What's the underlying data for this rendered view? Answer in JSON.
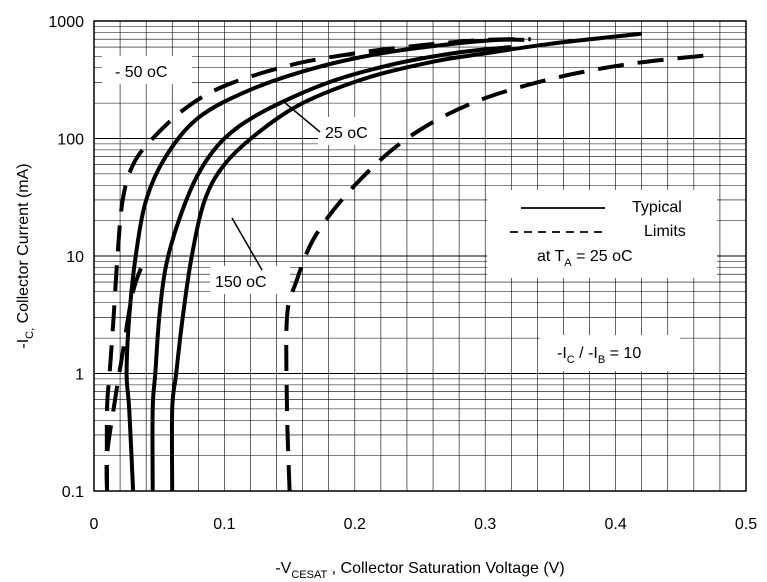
{
  "chart_data": {
    "type": "line",
    "xlabel": {
      "prefix": "-V",
      "sub": "CESAT",
      "suffix": " , Collector Saturation Voltage (V)"
    },
    "ylabel": {
      "prefix": "-I",
      "sub": "C,",
      "suffix": "  Collector Current (mA)"
    },
    "xlim": [
      0,
      0.5
    ],
    "ylim": [
      0.1,
      1000
    ],
    "yscale": "log",
    "grid": true,
    "x_ticks": [
      "0",
      "0.1",
      "0.2",
      "0.3",
      "0.4",
      "0.5"
    ],
    "y_ticks": [
      "0.1",
      "1",
      "10",
      "100",
      "1000"
    ],
    "series": [
      {
        "name": "- 50 oC",
        "style": "dashed",
        "x": [
          0.01,
          0.01,
          0.012,
          0.015,
          0.018,
          0.022,
          0.03,
          0.045,
          0.07,
          0.1,
          0.15,
          0.2,
          0.25,
          0.29,
          0.32,
          0.335
        ],
        "y": [
          0.1,
          0.5,
          1,
          3,
          10,
          30,
          60,
          100,
          180,
          280,
          420,
          530,
          620,
          680,
          700,
          700
        ]
      },
      {
        "name": "-50 oC limit",
        "style": "dashed",
        "x": [
          0.01,
          0.01,
          0.015,
          0.022,
          0.03,
          0.04
        ],
        "y": [
          0.1,
          0.2,
          0.5,
          1.5,
          5,
          10
        ]
      },
      {
        "name": "- 50 oC",
        "style": "solid",
        "x": [
          0.03,
          0.027,
          0.025,
          0.027,
          0.032,
          0.04,
          0.055,
          0.08,
          0.12,
          0.17,
          0.22,
          0.27,
          0.31,
          0.33
        ],
        "y": [
          0.1,
          0.5,
          1,
          3,
          10,
          30,
          70,
          150,
          260,
          400,
          530,
          630,
          690,
          690
        ]
      },
      {
        "name": "25 oC",
        "style": "solid",
        "x": [
          0.045,
          0.045,
          0.047,
          0.05,
          0.055,
          0.065,
          0.08,
          0.1,
          0.13,
          0.18,
          0.23,
          0.28,
          0.32
        ],
        "y": [
          0.1,
          0.5,
          1,
          3,
          8,
          20,
          50,
          100,
          170,
          300,
          430,
          540,
          600
        ]
      },
      {
        "name": "150 oC",
        "style": "solid",
        "x": [
          0.06,
          0.06,
          0.063,
          0.068,
          0.075,
          0.085,
          0.1,
          0.125,
          0.16,
          0.21,
          0.26,
          0.3,
          0.35,
          0.42
        ],
        "y": [
          0.1,
          0.5,
          1,
          3,
          10,
          30,
          60,
          110,
          200,
          330,
          450,
          530,
          640,
          780
        ]
      },
      {
        "name": "Limit",
        "style": "dashed",
        "x": [
          0.15,
          0.148,
          0.148,
          0.155,
          0.17,
          0.2,
          0.24,
          0.29,
          0.35,
          0.41,
          0.47
        ],
        "y": [
          0.1,
          0.5,
          3,
          6,
          15,
          40,
          100,
          200,
          320,
          430,
          510
        ]
      }
    ],
    "annotations": {
      "t_m50": "- 50 oC",
      "t_25": "25 oC",
      "t_150": "150 oC",
      "legend_typical": "Typical",
      "legend_limits": "Limits",
      "legend_at": "at  T",
      "legend_at_sub": "A",
      "legend_at_suffix": " = 25 oC",
      "ratio_a": "-I",
      "ratio_a_sub": "C",
      "ratio_mid": " / -I",
      "ratio_b_sub": "B",
      "ratio_suffix": " = 10"
    }
  }
}
